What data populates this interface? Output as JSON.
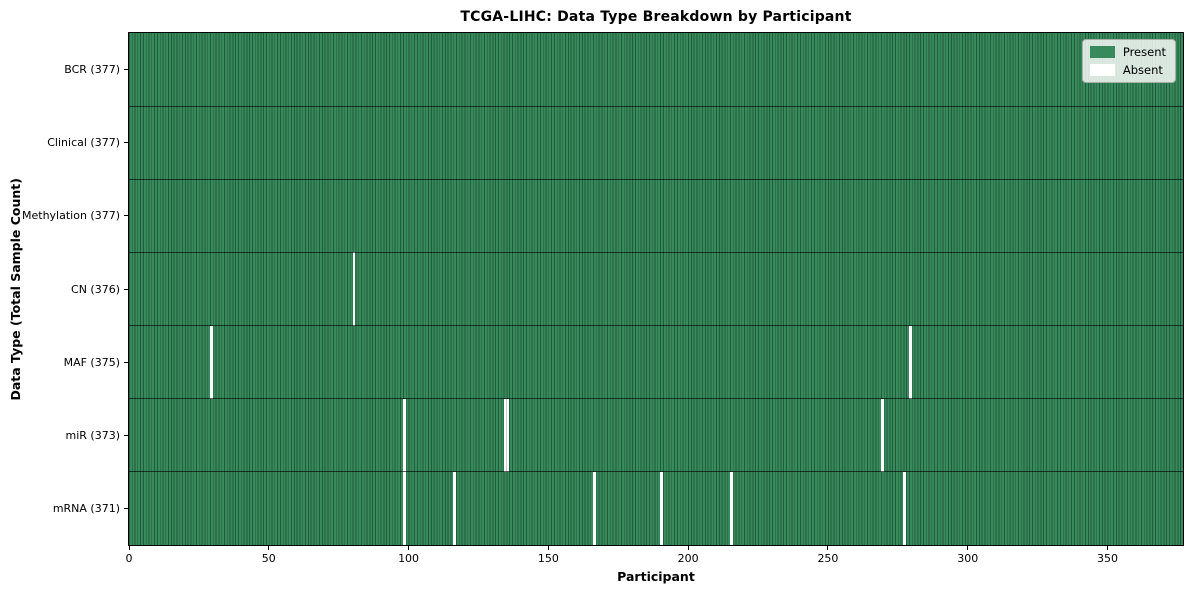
{
  "chart_data": {
    "type": "heatmap",
    "title": "TCGA-LIHC: Data Type Breakdown by Participant",
    "xlabel": "Participant",
    "ylabel": "Data Type (Total Sample Count)",
    "xlim": [
      0,
      377
    ],
    "n_participants": 377,
    "x_ticks": [
      0,
      50,
      100,
      150,
      200,
      250,
      300,
      350
    ],
    "grid": false,
    "legend_position": "upper right",
    "legend": [
      {
        "label": "Present",
        "color": "#388a5c"
      },
      {
        "label": "Absent",
        "color": "#ffffff"
      }
    ],
    "colors": {
      "present_fill": "#388a5c",
      "present_edge": "#1f5c3a",
      "absent_fill": "#ffffff",
      "row_divider": "rgba(0,0,0,0.62)",
      "spine": "#000000"
    },
    "rows": [
      {
        "name": "BCR",
        "label": "BCR (377)",
        "total": 377,
        "absent_participants": []
      },
      {
        "name": "Clinical",
        "label": "Clinical (377)",
        "total": 377,
        "absent_participants": []
      },
      {
        "name": "Methylation",
        "label": "Methylation (377)",
        "total": 377,
        "absent_participants": []
      },
      {
        "name": "CN",
        "label": "CN (376)",
        "total": 376,
        "absent_participants": [
          80
        ]
      },
      {
        "name": "MAF",
        "label": "MAF (375)",
        "total": 375,
        "absent_participants": [
          29,
          279
        ]
      },
      {
        "name": "miR",
        "label": "miR (373)",
        "total": 373,
        "absent_participants": [
          98,
          134,
          135,
          269
        ]
      },
      {
        "name": "mRNA",
        "label": "mRNA (371)",
        "total": 371,
        "absent_participants": [
          98,
          116,
          166,
          190,
          215,
          277
        ]
      }
    ]
  }
}
